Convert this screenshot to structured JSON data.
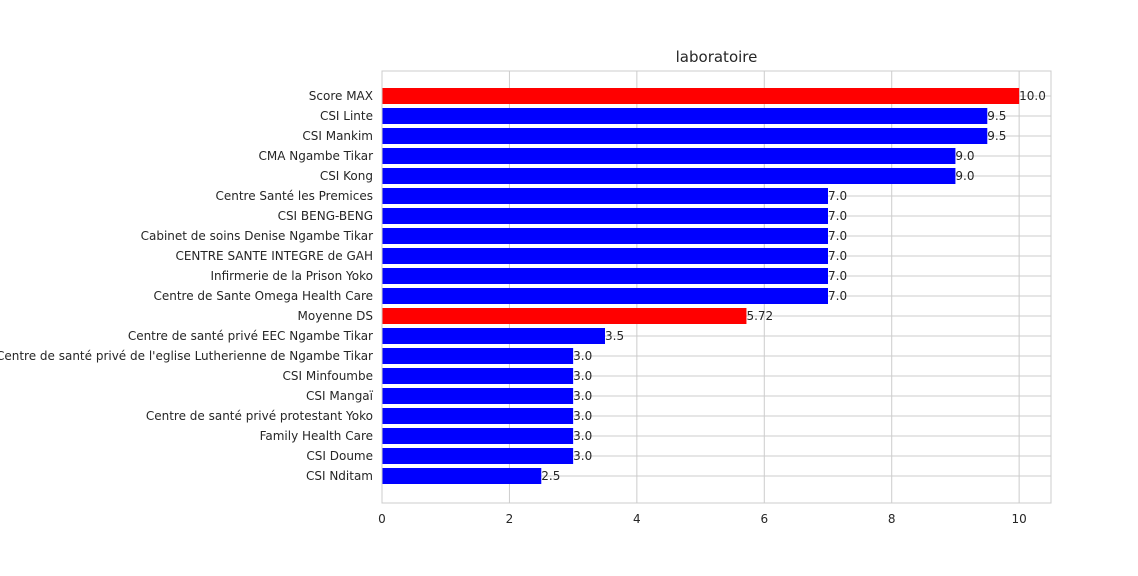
{
  "chart_data": {
    "type": "bar",
    "orientation": "horizontal",
    "title": "laboratoire",
    "xlabel": "",
    "ylabel": "",
    "xlim": [
      0,
      10.5
    ],
    "xticks": [
      0,
      2,
      4,
      6,
      8,
      10
    ],
    "grid": true,
    "categories": [
      "Score MAX",
      "CSI Linte",
      "CSI Mankim",
      "CMA Ngambe Tikar",
      "CSI Kong",
      "Centre Santé les Premices",
      "CSI BENG-BENG",
      "Cabinet de soins Denise Ngambe Tikar",
      "CENTRE SANTE INTEGRE  de GAH",
      "Infirmerie de la Prison Yoko",
      "Centre de Sante Omega Health  Care",
      "Moyenne DS",
      "Centre de santé privé EEC Ngambe Tikar",
      "Centre de santé privé  de l'eglise Lutherienne de Ngambe Tikar",
      "CSI Minfoumbe",
      "CSI Mangaï",
      "Centre de santé privé protestant Yoko",
      "Family Health Care",
      "CSI Doume",
      "CSI Nditam"
    ],
    "values": [
      10.0,
      9.5,
      9.5,
      9.0,
      9.0,
      7.0,
      7.0,
      7.0,
      7.0,
      7.0,
      7.0,
      5.72,
      3.5,
      3.0,
      3.0,
      3.0,
      3.0,
      3.0,
      3.0,
      2.5
    ],
    "value_labels": [
      "10.0",
      "9.5",
      "9.5",
      "9.0",
      "9.0",
      "7.0",
      "7.0",
      "7.0",
      "7.0",
      "7.0",
      "7.0",
      "5.72",
      "3.5",
      "3.0",
      "3.0",
      "3.0",
      "3.0",
      "3.0",
      "3.0",
      "2.5"
    ],
    "bar_colors": [
      "#ff0000",
      "#0000ff",
      "#0000ff",
      "#0000ff",
      "#0000ff",
      "#0000ff",
      "#0000ff",
      "#0000ff",
      "#0000ff",
      "#0000ff",
      "#0000ff",
      "#ff0000",
      "#0000ff",
      "#0000ff",
      "#0000ff",
      "#0000ff",
      "#0000ff",
      "#0000ff",
      "#0000ff",
      "#0000ff"
    ]
  }
}
